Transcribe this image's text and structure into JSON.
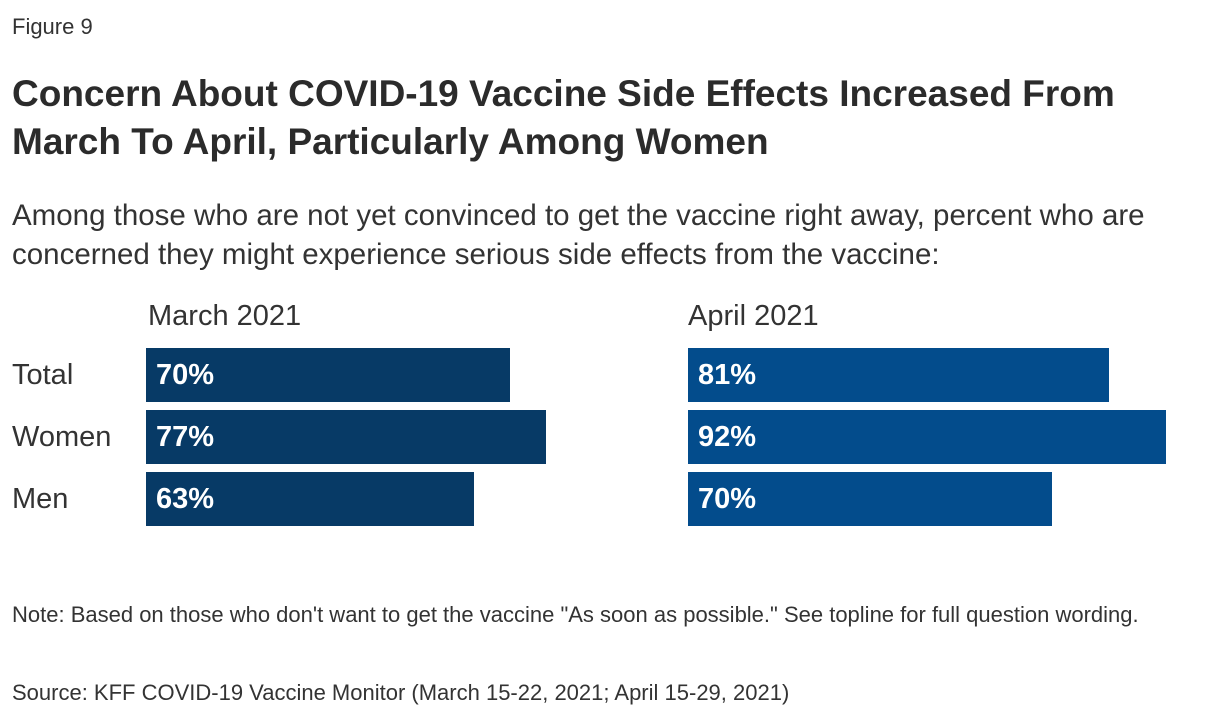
{
  "figure_label": "Figure 9",
  "title": "Concern About COVID-19 Vaccine Side Effects Increased From March To April, Particularly Among Women",
  "subtitle": "Among those who are not yet convinced to get the vaccine right away, percent who are concerned they might experience serious side effects from the vaccine:",
  "note": "Note: Based on those who don't want to get the vaccine \"As soon as possible.\" See topline for full question wording.",
  "source": "Source: KFF COVID-19 Vaccine Monitor (March 15-22, 2021; April 15-29, 2021)",
  "chart_data": {
    "type": "bar",
    "orientation": "horizontal",
    "categories": [
      "Total",
      "Women",
      "Men"
    ],
    "series": [
      {
        "name": "March 2021",
        "values": [
          70,
          77,
          63
        ],
        "labels": [
          "70%",
          "77%",
          "63%"
        ],
        "color": "#073a66"
      },
      {
        "name": "April 2021",
        "values": [
          81,
          92,
          70
        ],
        "labels": [
          "81%",
          "92%",
          "70%"
        ],
        "color": "#034c8c"
      }
    ],
    "xlabel": "",
    "ylabel": "",
    "xlim": [
      0,
      100
    ],
    "legend": "none",
    "grid": false
  }
}
